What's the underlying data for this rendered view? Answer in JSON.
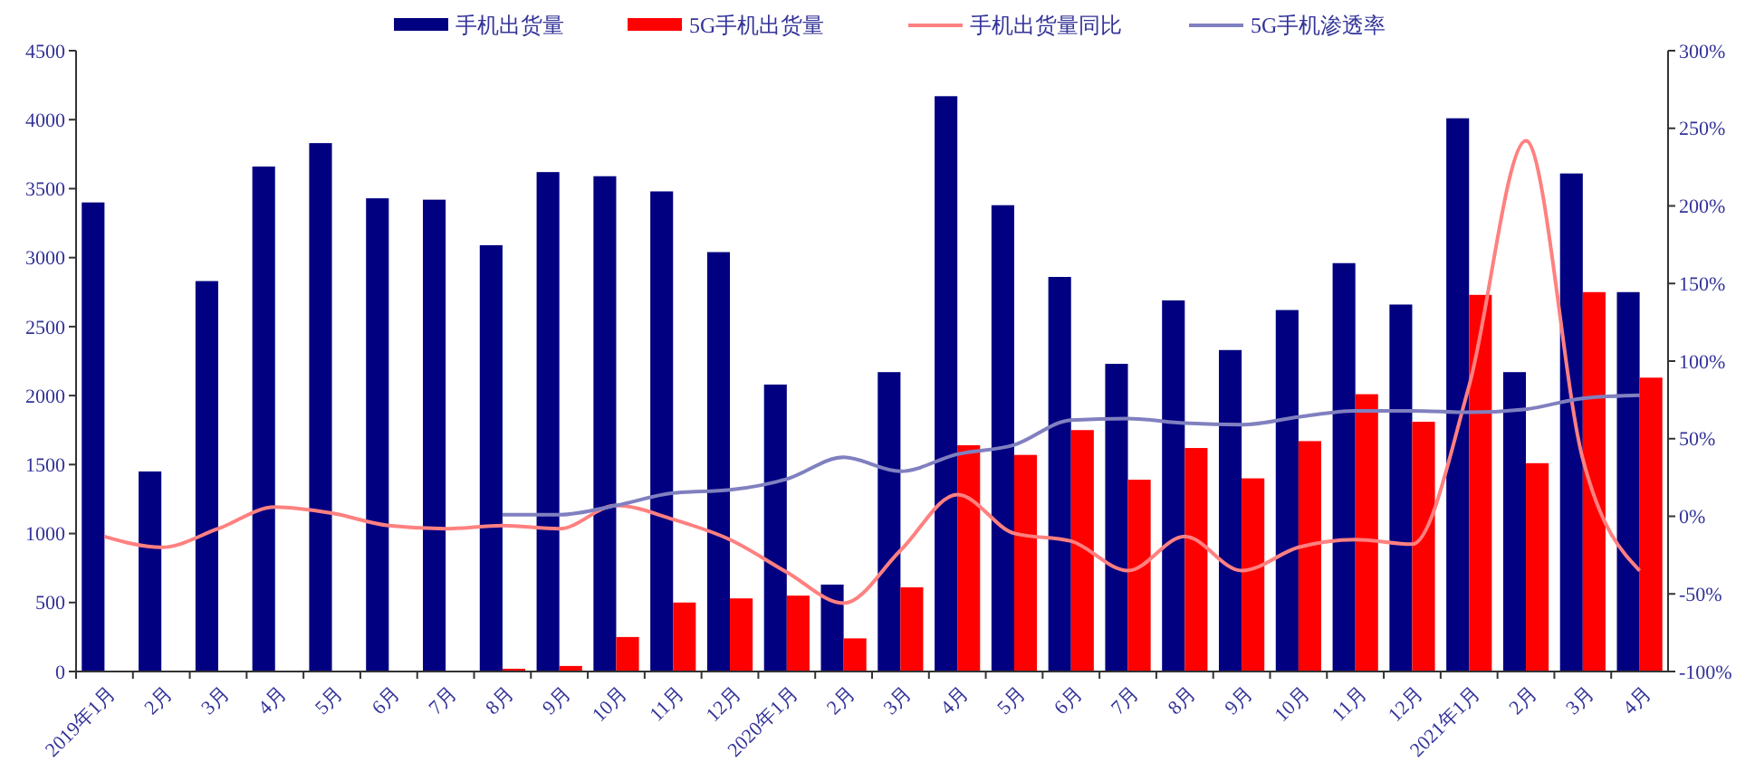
{
  "chart_data": {
    "type": "bar",
    "categories": [
      "2019年1月",
      "2月",
      "3月",
      "4月",
      "5月",
      "6月",
      "7月",
      "8月",
      "9月",
      "10月",
      "11月",
      "12月",
      "2020年1月",
      "2月",
      "3月",
      "4月",
      "5月",
      "6月",
      "7月",
      "8月",
      "9月",
      "10月",
      "11月",
      "12月",
      "2021年1月",
      "2月",
      "3月",
      "4月"
    ],
    "series": [
      {
        "name": "手机出货量",
        "color": "#000080",
        "values": [
          3400,
          1450,
          2830,
          3660,
          3830,
          3430,
          3420,
          3090,
          3620,
          3590,
          3480,
          3040,
          2080,
          630,
          2170,
          4170,
          3380,
          2860,
          2230,
          2690,
          2330,
          2620,
          2960,
          2660,
          4010,
          2170,
          3610,
          2750
        ]
      },
      {
        "name": "5G手机出货量",
        "color": "#ff0000",
        "values": [
          null,
          null,
          null,
          null,
          null,
          null,
          null,
          20,
          40,
          250,
          500,
          530,
          550,
          240,
          610,
          1640,
          1570,
          1750,
          1390,
          1620,
          1400,
          1670,
          2010,
          1810,
          2730,
          1510,
          2750,
          2130
        ]
      },
      {
        "name": "手机出货量同比",
        "type": "line",
        "axis": "y2",
        "color": "#ff8080",
        "values": [
          -13,
          -20,
          -8,
          6,
          2,
          -6,
          -8,
          -6,
          -8,
          7,
          -2,
          -15,
          -36,
          -56,
          -22,
          14,
          -11,
          -16,
          -35,
          -13,
          -35,
          -20,
          -15,
          -18,
          84,
          242,
          37,
          -35
        ]
      },
      {
        "name": "5G手机渗透率",
        "type": "line",
        "axis": "y2",
        "color": "#8080c0",
        "values": [
          null,
          null,
          null,
          null,
          null,
          null,
          null,
          1,
          1,
          7,
          15,
          17,
          24,
          38,
          29,
          40,
          46,
          62,
          63,
          60,
          59,
          64,
          68,
          68,
          67,
          69,
          76,
          78
        ]
      }
    ],
    "ylim": [
      0,
      4500
    ],
    "yticks": [
      0,
      500,
      1000,
      1500,
      2000,
      2500,
      3000,
      3500,
      4000,
      4500
    ],
    "y2lim": [
      -100,
      300
    ],
    "y2ticks": [
      {
        "value": -100,
        "label": "-100%"
      },
      {
        "value": -50,
        "label": "-50%"
      },
      {
        "value": 0,
        "label": "0%"
      },
      {
        "value": 50,
        "label": "50%"
      },
      {
        "value": 100,
        "label": "100%"
      },
      {
        "value": 150,
        "label": "150%"
      },
      {
        "value": 200,
        "label": "200%"
      },
      {
        "value": 250,
        "label": "250%"
      },
      {
        "value": 300,
        "label": "300%"
      }
    ],
    "grid": false,
    "legend": "top",
    "marker": "none",
    "line_style": "solid"
  }
}
